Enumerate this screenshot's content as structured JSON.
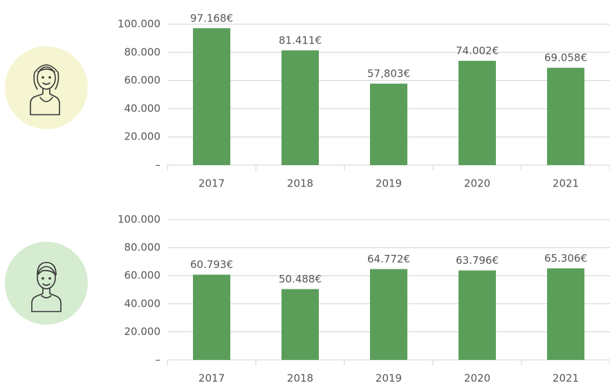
{
  "chart_data": [
    {
      "type": "bar",
      "categories": [
        "2017",
        "2018",
        "2019",
        "2020",
        "2021"
      ],
      "values": [
        97168,
        81411,
        57803,
        74002,
        69058
      ],
      "value_labels": [
        "97.168€",
        "81.411€",
        "57,803€",
        "74.002€",
        "69.058€"
      ],
      "color": "#5a9e5a",
      "ylim": [
        0,
        100000
      ],
      "yticks": [
        {
          "value": 0,
          "label": "–"
        },
        {
          "value": 20000,
          "label": "20.000"
        },
        {
          "value": 40000,
          "label": "40.000"
        },
        {
          "value": 60000,
          "label": "60.000"
        },
        {
          "value": 80000,
          "label": "80.000"
        },
        {
          "value": 100000,
          "label": "100.000"
        }
      ],
      "grid": true
    },
    {
      "type": "bar",
      "categories": [
        "2017",
        "2018",
        "2019",
        "2020",
        "2021"
      ],
      "values": [
        60793,
        50488,
        64772,
        63796,
        65306
      ],
      "value_labels": [
        "60.793€",
        "50.488€",
        "64.772€",
        "63.796€",
        "65.306€"
      ],
      "color": "#5a9e5a",
      "ylim": [
        0,
        100000
      ],
      "yticks": [
        {
          "value": 0,
          "label": "–"
        },
        {
          "value": 20000,
          "label": "20.000"
        },
        {
          "value": 40000,
          "label": "40.000"
        },
        {
          "value": 60000,
          "label": "60.000"
        },
        {
          "value": 80000,
          "label": "80.000"
        },
        {
          "value": 100000,
          "label": "100.000"
        }
      ],
      "grid": true
    }
  ]
}
